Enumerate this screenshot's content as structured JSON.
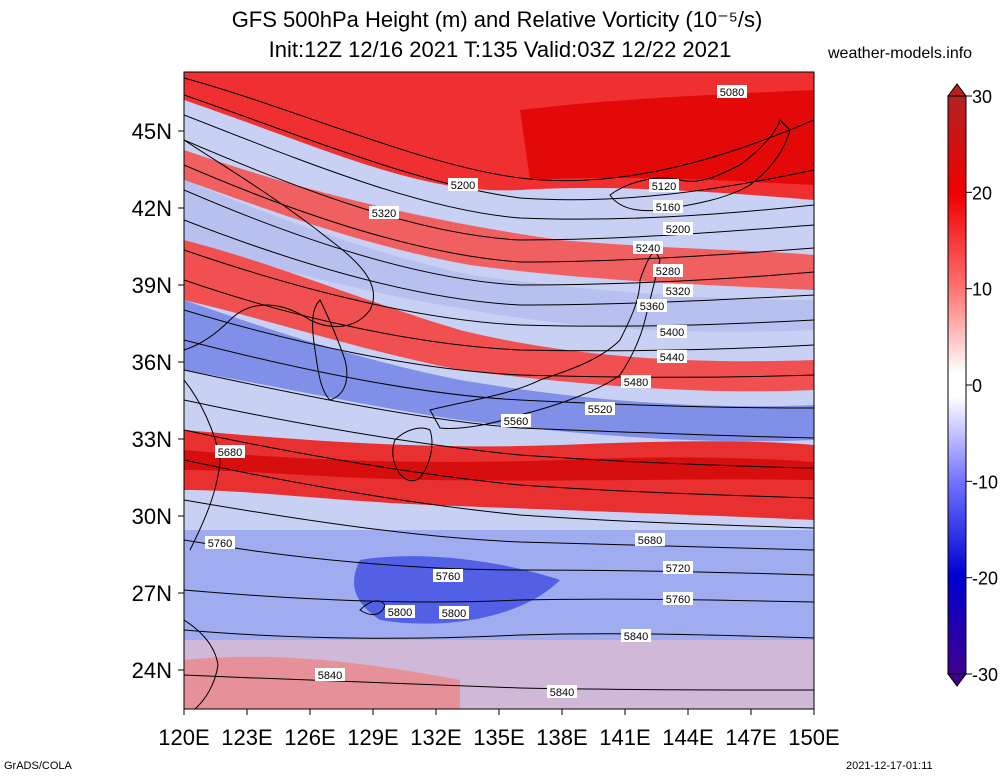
{
  "title": {
    "line1": "GFS 500hPa Height (m) and Relative Vorticity (10⁻⁵/s)",
    "line2": "Init:12Z 12/16 2021 T:135 Valid:03Z 12/22 2021"
  },
  "site": "weather-models.info",
  "footer": {
    "left": "GrADS/COLA",
    "right": "2021-12-17-01:11"
  },
  "map": {
    "region": "East Asia / Japan",
    "lon_range": [
      120,
      150
    ],
    "lat_range": [
      22.5,
      48
    ]
  },
  "axes": {
    "x_ticks": [
      "120E",
      "123E",
      "126E",
      "129E",
      "132E",
      "135E",
      "138E",
      "141E",
      "144E",
      "147E",
      "150E"
    ],
    "y_ticks": [
      "24N",
      "27N",
      "30N",
      "33N",
      "36N",
      "39N",
      "42N",
      "45N"
    ]
  },
  "colorbar": {
    "ticks": [
      "30",
      "20",
      "10",
      "0",
      "-10",
      "-20",
      "-30"
    ],
    "colors": [
      "#b22222",
      "#f00000",
      "#ff8080",
      "#ffffff",
      "#8080ff",
      "#0000e0",
      "#300090"
    ]
  },
  "contour_labels": [
    "5080",
    "5120",
    "5160",
    "5200",
    "5240",
    "5280",
    "5320",
    "5360",
    "5400",
    "5440",
    "5480",
    "5520",
    "5560",
    "5680",
    "5720",
    "5760",
    "5800",
    "5840",
    "5200",
    "5320",
    "5680",
    "5760",
    "5760",
    "5800",
    "5840",
    "5840"
  ],
  "colors": {
    "positive": "#e8202a",
    "negative": "#3050e0",
    "neutral": "#ffffff"
  }
}
